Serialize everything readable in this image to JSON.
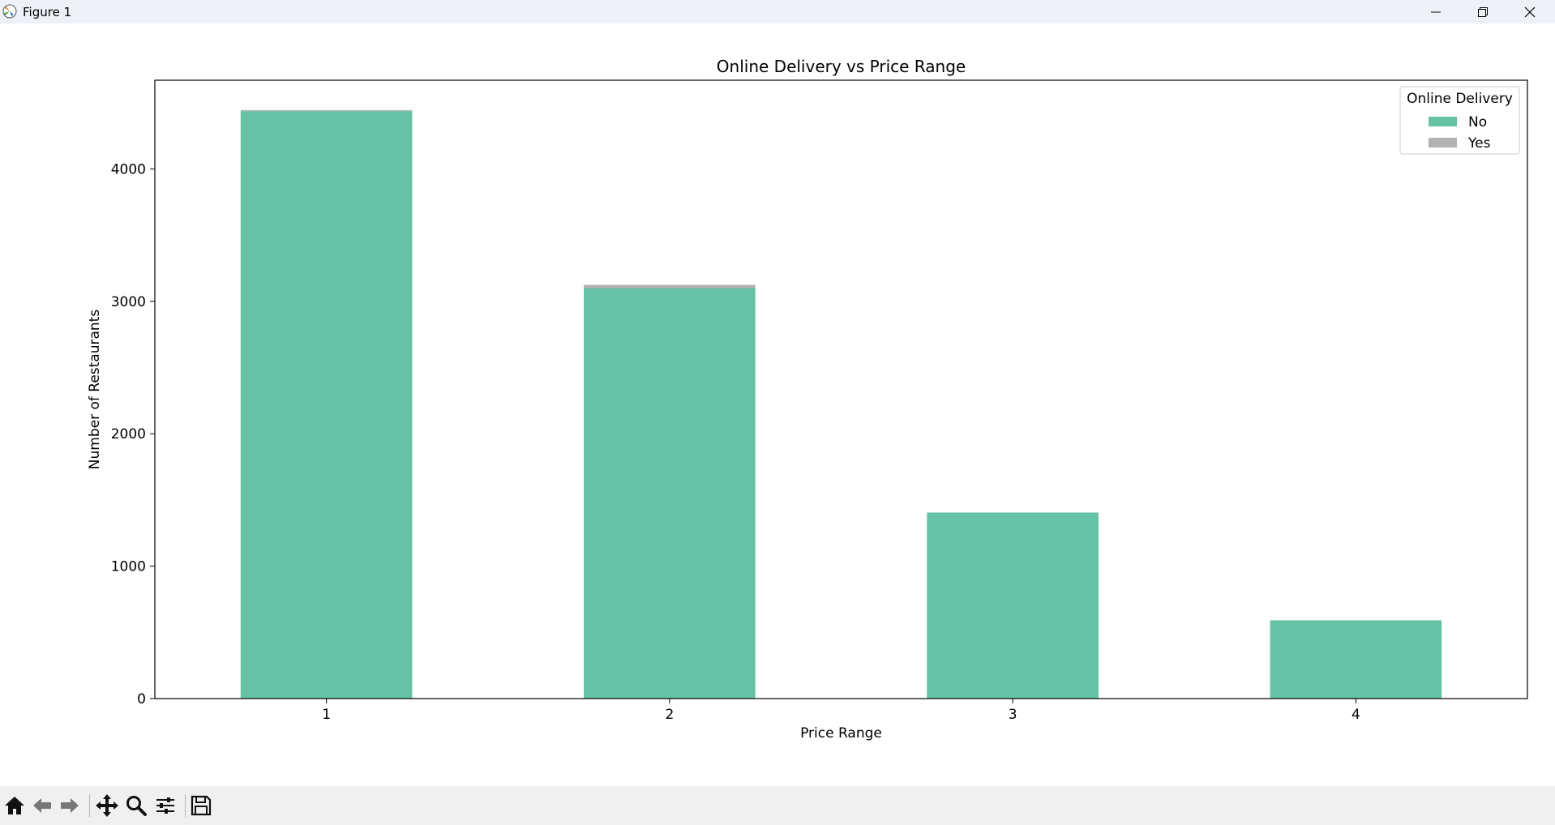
{
  "window": {
    "title": "Figure 1",
    "icons": [
      "app-icon",
      "minimize-icon",
      "restore-icon",
      "close-icon"
    ]
  },
  "toolbar": {
    "tools": [
      "home-icon",
      "back-icon",
      "forward-icon",
      "pan-icon",
      "zoom-icon",
      "configure-subplots-icon",
      "save-icon"
    ]
  },
  "chart_data": {
    "type": "bar",
    "stacked": true,
    "title": "Online Delivery vs Price Range",
    "xlabel": "Price Range",
    "ylabel": "Number of Restaurants",
    "categories": [
      "1",
      "2",
      "3",
      "4"
    ],
    "series": [
      {
        "name": "No",
        "color": "#66c2a5",
        "values": [
          4437,
          3100,
          1405,
          591
        ]
      },
      {
        "name": "Yes",
        "color": "#b3b3b3",
        "values": [
          7,
          25,
          0,
          0
        ]
      }
    ],
    "ylim": [
      0,
      4670
    ],
    "yticks": [
      0,
      1000,
      2000,
      3000,
      4000
    ],
    "grid": false,
    "legend": {
      "title": "Online Delivery",
      "placement": "top-right"
    }
  }
}
